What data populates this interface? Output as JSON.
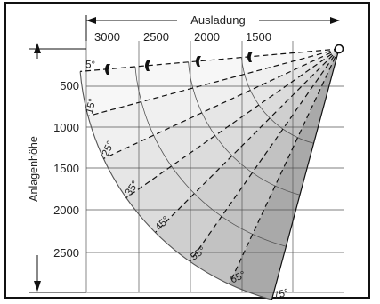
{
  "diagram": {
    "x_axis_title": "Ausladung",
    "y_axis_title": "Anlagenhöhe",
    "x_ticks": [
      "3000",
      "2500",
      "2000",
      "1500"
    ],
    "y_ticks": [
      "500",
      "1000",
      "1500",
      "2000",
      "2500"
    ],
    "angles": [
      "5°",
      "15°",
      "25°",
      "35°",
      "45°",
      "55°",
      "65°",
      "75°"
    ],
    "sector_colors": [
      "#f7f7f7",
      "#f0f0f0",
      "#e6e6e6",
      "#dcdcdc",
      "#cfcfcf",
      "#c2c2c2",
      "#a9a9a9"
    ]
  }
}
